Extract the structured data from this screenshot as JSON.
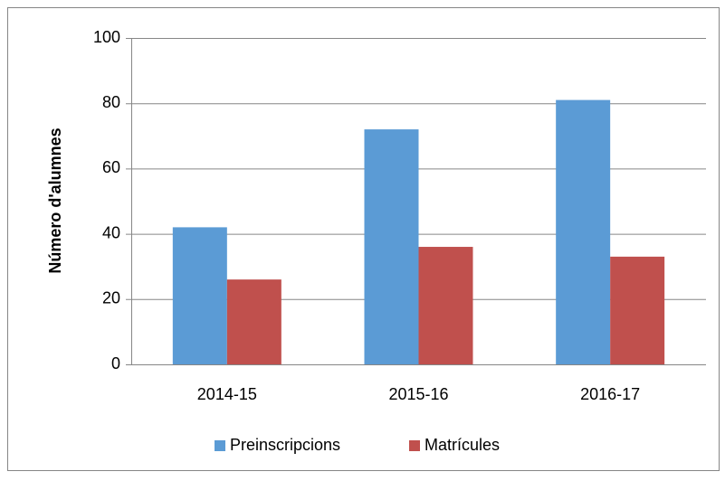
{
  "chart_data": {
    "type": "bar",
    "categories": [
      "2014-15",
      "2015-16",
      "2016-17"
    ],
    "series": [
      {
        "name": "Preinscripcions",
        "color": "#5b9bd5",
        "values": [
          42,
          72,
          81
        ]
      },
      {
        "name": "Matrícules",
        "color": "#c0504d",
        "values": [
          26,
          36,
          33
        ]
      }
    ],
    "y_label": "Número d'alumnes",
    "ylim": [
      0,
      100
    ],
    "yticks": [
      0,
      20,
      40,
      60,
      80,
      100
    ],
    "grid": true,
    "legend": "bottom"
  }
}
